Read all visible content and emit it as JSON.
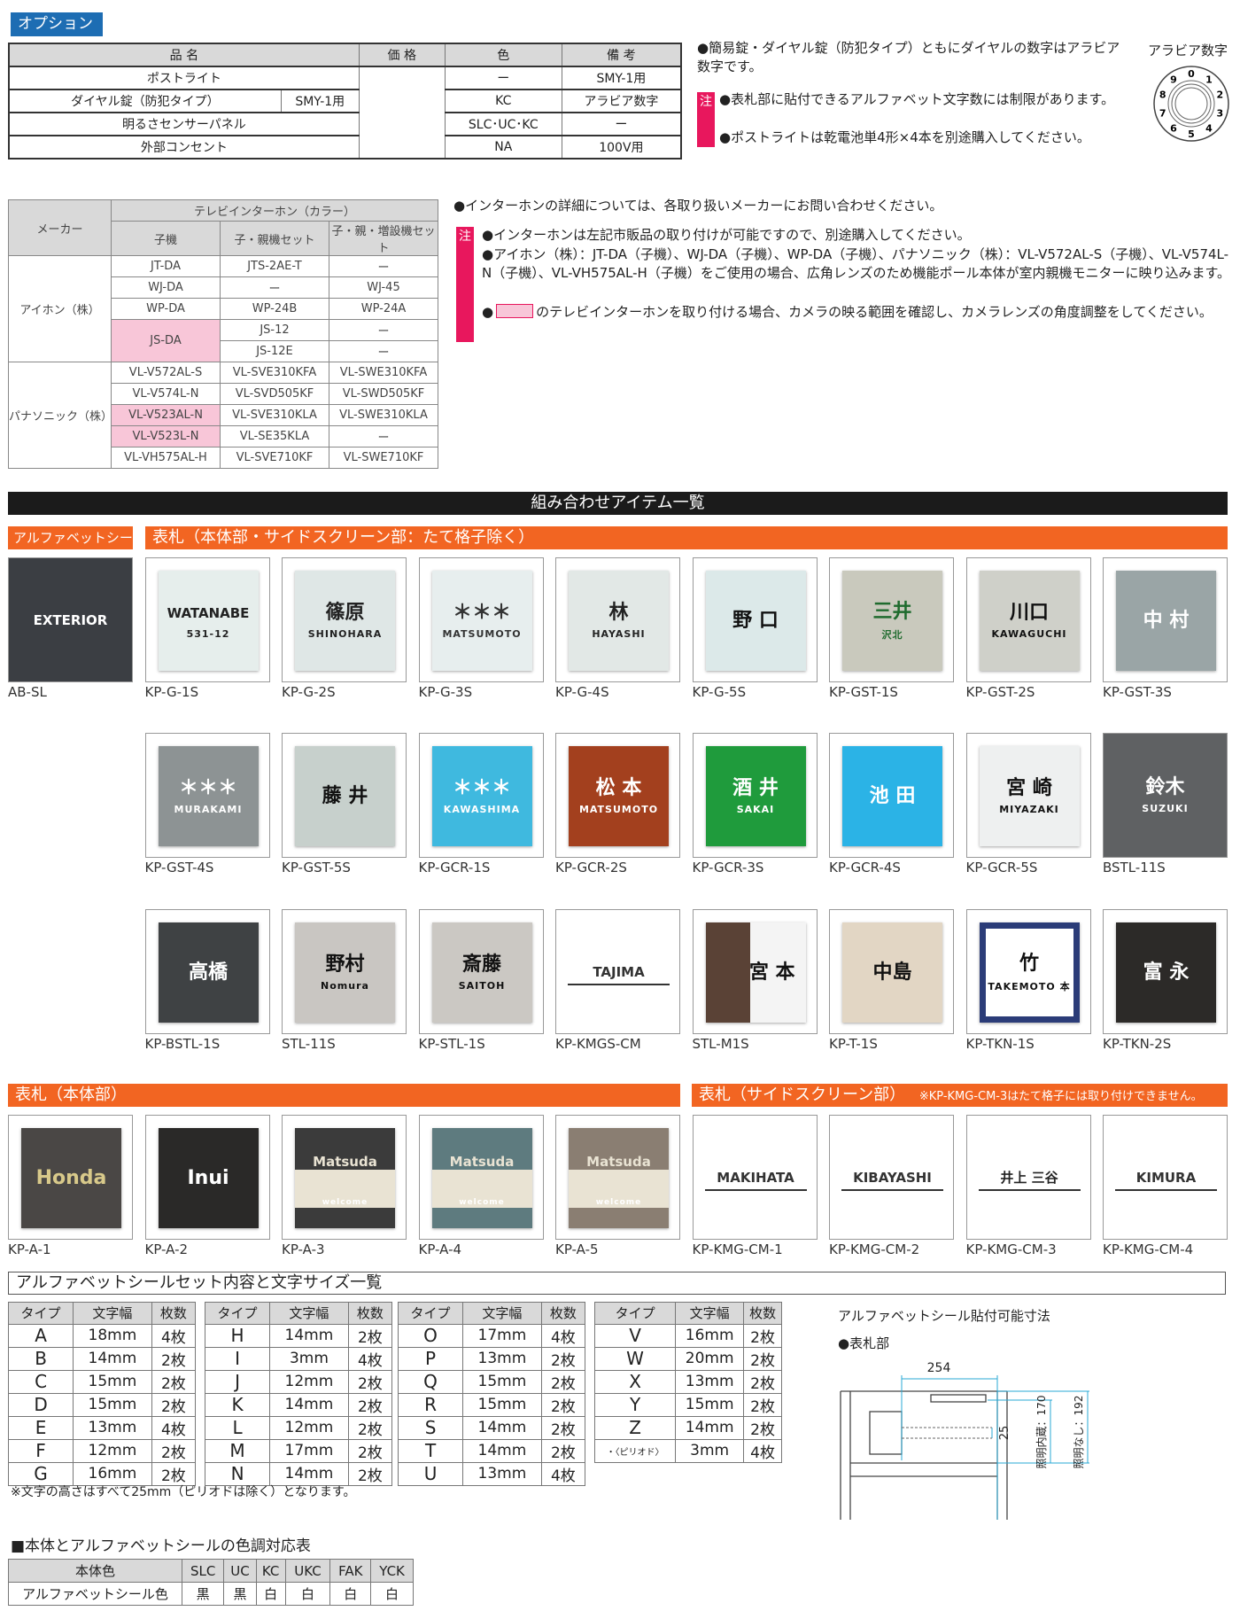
{
  "options": {
    "label": "オプション",
    "headers": [
      "品 名",
      "価 格",
      "色",
      "備 考"
    ],
    "rows": [
      {
        "name": "ポストライト",
        "color": "ー",
        "note": "SMY-1用"
      },
      {
        "name": "ダイヤル錠（防犯タイプ）",
        "sub": "SMY-1用",
        "color": "KC",
        "note": "アラビア数字"
      },
      {
        "name": "明るさセンサーパネル",
        "color": "SLC･UC･KC",
        "note": "ー"
      },
      {
        "name": "外部コンセント",
        "color": "NA",
        "note": "100V用"
      }
    ],
    "note1": "●簡易錠・ダイヤル錠（防犯タイプ）ともにダイヤルの数字はアラビア数字です。",
    "chu": "注",
    "note2": "●表札部に貼付できるアルファベット文字数には制限があります。",
    "note3": "●ポストライトは乾電池単4形×4本を別途購入してください。",
    "dial_label": "アラビア数字",
    "dial_digits": [
      "0",
      "1",
      "2",
      "3",
      "4",
      "5",
      "6",
      "7",
      "8",
      "9"
    ]
  },
  "intercom": {
    "h_maker": "メーカー",
    "h_group": "テレビインターホン（カラー）",
    "h_cols": [
      "子機",
      "子・親機セット",
      "子・親・増設機セット"
    ],
    "makers": [
      "アイホン（株）",
      "パナソニック（株）"
    ],
    "rows": [
      [
        "JT-DA",
        "JTS-2AE-T",
        "ー"
      ],
      [
        "WJ-DA",
        "ー",
        "WJ-45"
      ],
      [
        "WP-DA",
        "WP-24B",
        "WP-24A"
      ],
      [
        "JS-DA",
        "JS-12",
        "ー"
      ],
      [
        "",
        "JS-12E",
        "ー"
      ],
      [
        "VL-V572AL-S",
        "VL-SVE310KFA",
        "VL-SWE310KFA"
      ],
      [
        "VL-V574L-N",
        "VL-SVD505KF",
        "VL-SWD505KF"
      ],
      [
        "VL-V523AL-N",
        "VL-SVE310KLA",
        "VL-SWE310KLA"
      ],
      [
        "VL-V523L-N",
        "VL-SE35KLA",
        "ー"
      ],
      [
        "VL-VH575AL-H",
        "VL-SVE710KF",
        "VL-SWE710KF"
      ]
    ],
    "highlight_color": "#f8c6d8",
    "note_main": "●インターホンの詳細については、各取り扱いメーカーにお問い合わせください。",
    "chu": "注",
    "notes": [
      "●インターホンは左記市販品の取り付けが可能ですので、別途購入してください。",
      "●アイホン（株）：JT-DA（子機）、WJ-DA（子機）、WP-DA（子機）、パナソニック（株）：VL-V572AL-S（子機）、VL-V574L-N（子機）、VL-VH575AL-H（子機）をご使用の場合、広角レンズのため機能ポール本体が室内親機モニターに映り込みます。",
      "のテレビインターホンを取り付ける場合、カメラの映る範囲を確認し、カメラレンズの角度調整をしてください。"
    ]
  },
  "items": {
    "title": "組み合わせアイテム一覧",
    "h_alpha": "アルファベットシール",
    "h_main": "表札（本体部・サイドスクリーン部：たて格子除く）",
    "h_body": "表札（本体部）",
    "h_side": "表札（サイドスクリーン部）",
    "h_side_note": "※KP-KMG-CM-3はたて格子には取り付けできません。",
    "rows": [
      [
        {
          "code": "AB-SL",
          "t1": "EXTERIOR",
          "t2": "",
          "bg": "#3b3e43",
          "fg": "#ffffff",
          "full": true
        },
        {
          "code": "KP-G-1S",
          "t1": "WATANABE",
          "t2": "531-12",
          "bg": "#e6eeec",
          "fg": "#222"
        },
        {
          "code": "KP-G-2S",
          "t1": "篠原",
          "t2": "SHINOHARA",
          "bg": "#dfe7e6",
          "fg": "#222"
        },
        {
          "code": "KP-G-3S",
          "t1": "＊＊＊",
          "t2": "MATSUMOTO",
          "bg": "#e7eeee",
          "fg": "#333"
        },
        {
          "code": "KP-G-4S",
          "t1": "林",
          "t2": "HAYASHI",
          "bg": "#e2e8e6",
          "fg": "#222"
        },
        {
          "code": "KP-G-5S",
          "t1": "野 口",
          "t2": "",
          "bg": "#dce9e9",
          "fg": "#111"
        },
        {
          "code": "KP-GST-1S",
          "t1": "三井",
          "t2": "沢北",
          "bg": "#c9c9bd",
          "fg": "#1f6b2e"
        },
        {
          "code": "KP-GST-2S",
          "t1": "川口",
          "t2": "KAWAGUCHI",
          "bg": "#cfd0c9",
          "fg": "#111"
        },
        {
          "code": "KP-GST-3S",
          "t1": "中 村",
          "t2": "",
          "bg": "#9aa5a6",
          "fg": "#ffffff"
        }
      ],
      [
        null,
        {
          "code": "KP-GST-4S",
          "t1": "＊＊＊",
          "t2": "MURAKAMI",
          "bg": "#8d9394",
          "fg": "#ffffff"
        },
        {
          "code": "KP-GST-5S",
          "t1": "藤 井",
          "t2": "",
          "bg": "#c7d0cc",
          "fg": "#111"
        },
        {
          "code": "KP-GCR-1S",
          "t1": "＊＊＊",
          "t2": "KAWASHIMA",
          "bg": "#3fb9df",
          "fg": "#ffffff"
        },
        {
          "code": "KP-GCR-2S",
          "t1": "松 本",
          "t2": "MATSUMOTO",
          "bg": "#a3401e",
          "fg": "#ffffff"
        },
        {
          "code": "KP-GCR-3S",
          "t1": "酒 井",
          "t2": "SAKAI",
          "bg": "#1f9b3c",
          "fg": "#ffffff"
        },
        {
          "code": "KP-GCR-4S",
          "t1": "池 田",
          "t2": "",
          "bg": "#2bb3e6",
          "fg": "#ffffff"
        },
        {
          "code": "KP-GCR-5S",
          "t1": "宮 崎",
          "t2": "MIYAZAKI",
          "bg": "#eef0f0",
          "fg": "#111"
        },
        {
          "code": "BSTL-11S",
          "t1": "鈴木",
          "t2": "SUZUKI",
          "bg": "#5f6163",
          "fg": "#ffffff",
          "full": true
        }
      ],
      [
        null,
        {
          "code": "KP-BSTL-1S",
          "t1": "高橋",
          "t2": "",
          "bg": "#3f4244",
          "fg": "#ffffff"
        },
        {
          "code": "STL-11S",
          "t1": "野村",
          "t2": "Nomura",
          "bg": "#c9c6c2",
          "fg": "#111"
        },
        {
          "code": "KP-STL-1S",
          "t1": "斎藤",
          "t2": "SAITOH",
          "bg": "#cbc8c3",
          "fg": "#111"
        },
        {
          "code": "KP-KMGS-CM",
          "t1": "TAJIMA",
          "t2": "",
          "bg": "#ffffff",
          "fg": "#333",
          "line": true
        },
        {
          "code": "STL-M1S",
          "t1": "宮 本",
          "t2": "",
          "bg": "#f4f4f4",
          "fg": "#111",
          "wood": true
        },
        {
          "code": "KP-T-1S",
          "t1": "中島",
          "t2": "",
          "bg": "#e2d6c4",
          "fg": "#111"
        },
        {
          "code": "KP-TKN-1S",
          "t1": "竹",
          "t2": "TAKEMOTO 本",
          "bg": "#ffffff",
          "fg": "#111",
          "border": "#2b3c78"
        },
        {
          "code": "KP-TKN-2S",
          "t1": "富 永",
          "t2": "",
          "bg": "#2c2a28",
          "fg": "#ffffff"
        }
      ],
      [
        {
          "code": "KP-A-1",
          "t1": "Honda",
          "t2": "",
          "bg": "#4a4745",
          "fg": "#d8c98a"
        },
        {
          "code": "KP-A-2",
          "t1": "Inui",
          "t2": "",
          "bg": "#2a2928",
          "fg": "#ffffff"
        },
        {
          "code": "KP-A-3",
          "t1": "Matsuda",
          "t2": "welcome",
          "bg": "#e9e3d3",
          "fg": "#333",
          "band": "#3b3b3b"
        },
        {
          "code": "KP-A-4",
          "t1": "Matsuda",
          "t2": "welcome",
          "bg": "#e9e3d3",
          "fg": "#4c6b6f",
          "band": "#5e7b7f"
        },
        {
          "code": "KP-A-5",
          "t1": "Matsuda",
          "t2": "welcome",
          "bg": "#e9e3d3",
          "fg": "#7a6b5e",
          "band": "#8a7e72"
        },
        {
          "code": "KP-KMG-CM-1",
          "t1": "MAKIHATA",
          "t2": "",
          "bg": "#ffffff",
          "fg": "#333",
          "line": true
        },
        {
          "code": "KP-KMG-CM-2",
          "t1": "KIBAYASHI",
          "t2": "",
          "bg": "#ffffff",
          "fg": "#333",
          "line": true
        },
        {
          "code": "KP-KMG-CM-3",
          "t1": "井上 三谷",
          "t2": "",
          "bg": "#ffffff",
          "fg": "#222",
          "line": true
        },
        {
          "code": "KP-KMG-CM-4",
          "t1": "KIMURA",
          "t2": "",
          "bg": "#ffffff",
          "fg": "#333",
          "line": true
        }
      ]
    ]
  },
  "alpha": {
    "title": "アルファベットシールセット内容と文字サイズ一覧",
    "headers": [
      "タイプ",
      "文字幅",
      "枚数"
    ],
    "tables": [
      [
        [
          "A",
          "18mm",
          "4枚"
        ],
        [
          "B",
          "14mm",
          "2枚"
        ],
        [
          "C",
          "15mm",
          "2枚"
        ],
        [
          "D",
          "15mm",
          "2枚"
        ],
        [
          "E",
          "13mm",
          "4枚"
        ],
        [
          "F",
          "12mm",
          "2枚"
        ],
        [
          "G",
          "16mm",
          "2枚"
        ]
      ],
      [
        [
          "H",
          "14mm",
          "2枚"
        ],
        [
          "I",
          "3mm",
          "4枚"
        ],
        [
          "J",
          "12mm",
          "2枚"
        ],
        [
          "K",
          "14mm",
          "2枚"
        ],
        [
          "L",
          "12mm",
          "2枚"
        ],
        [
          "M",
          "17mm",
          "2枚"
        ],
        [
          "N",
          "14mm",
          "2枚"
        ]
      ],
      [
        [
          "O",
          "17mm",
          "4枚"
        ],
        [
          "P",
          "13mm",
          "2枚"
        ],
        [
          "Q",
          "15mm",
          "2枚"
        ],
        [
          "R",
          "15mm",
          "2枚"
        ],
        [
          "S",
          "14mm",
          "2枚"
        ],
        [
          "T",
          "14mm",
          "2枚"
        ],
        [
          "U",
          "13mm",
          "4枚"
        ]
      ],
      [
        [
          "V",
          "16mm",
          "2枚"
        ],
        [
          "W",
          "20mm",
          "2枚"
        ],
        [
          "X",
          "13mm",
          "2枚"
        ],
        [
          "Y",
          "15mm",
          "2枚"
        ],
        [
          "Z",
          "14mm",
          "2枚"
        ],
        [
          "・〈ピリオド〉",
          "3mm",
          "4枚"
        ]
      ]
    ],
    "footnote": "※文字の高さはすべて25mm（ピリオドは除く）となります。",
    "diagram": {
      "title": "アルファベットシール貼付可能寸法",
      "sub": "●表札部",
      "w": "254",
      "h": "25",
      "lit": "照明内蔵：170",
      "nolit": "照明なし：192",
      "dim_color": "#29a9d6"
    }
  },
  "colors": {
    "title": "■本体とアルファベットシールの色調対応表",
    "row1_label": "本体色",
    "row2_label": "アルファベットシール色",
    "bodies": [
      "SLC",
      "UC",
      "KC",
      "UKC",
      "FAK",
      "YCK"
    ],
    "seals": [
      "黒",
      "黒",
      "白",
      "白",
      "白",
      "白"
    ]
  }
}
